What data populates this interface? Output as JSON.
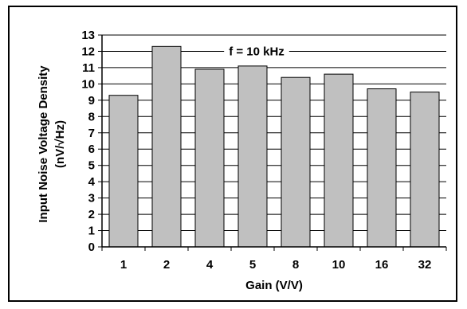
{
  "chart_data": {
    "type": "bar",
    "title": "",
    "categories": [
      "1",
      "2",
      "4",
      "5",
      "8",
      "10",
      "16",
      "32"
    ],
    "values": [
      9.3,
      12.3,
      10.9,
      11.1,
      10.4,
      10.6,
      9.7,
      9.5
    ],
    "xlabel": "Gain (V/V)",
    "ylabel_line1": "Input Noise Voltage Density",
    "ylabel_line2": "(nV/√Hz)",
    "ylim": [
      0,
      13
    ],
    "yticks": [
      0,
      1,
      2,
      3,
      4,
      5,
      6,
      7,
      8,
      9,
      10,
      11,
      12,
      13
    ],
    "grid": "horizontal",
    "annotation": "f = 10 kHz",
    "colors": {
      "bar_fill": "#c0c0c0",
      "bar_stroke": "#000000",
      "grid": "#000000",
      "background": "#ffffff"
    }
  }
}
